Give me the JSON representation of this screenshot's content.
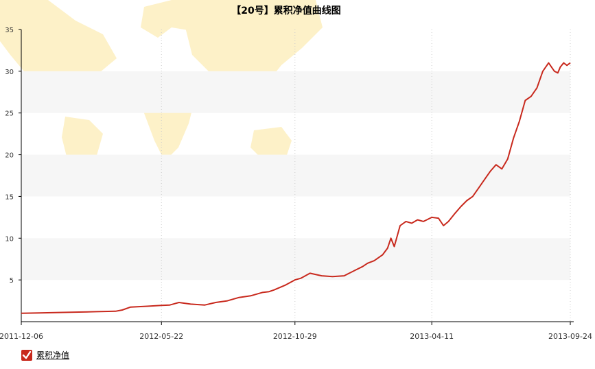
{
  "chart_data": {
    "type": "line",
    "title": "【20号】累积净值曲线图",
    "xlabel": "",
    "ylabel": "",
    "ylim": [
      0,
      35
    ],
    "yticks": [
      5,
      10,
      15,
      20,
      25,
      30,
      35
    ],
    "xticks": [
      "2011-12-06",
      "2012-05-22",
      "2012-10-29",
      "2013-04-11",
      "2013-09-24"
    ],
    "x_range": [
      "2011-12-06",
      "2013-09-24"
    ],
    "band_fill": "#f6f6f6",
    "line_color": "#c8291d",
    "legend": {
      "position": "bottom-left"
    },
    "series": [
      {
        "name": "累积净值",
        "x": [
          "2011-12-06",
          "2011-12-28",
          "2012-01-20",
          "2012-02-13",
          "2012-03-05",
          "2012-03-28",
          "2012-04-05",
          "2012-04-15",
          "2012-05-05",
          "2012-05-22",
          "2012-06-01",
          "2012-06-12",
          "2012-06-26",
          "2012-07-13",
          "2012-07-26",
          "2012-08-09",
          "2012-08-23",
          "2012-09-06",
          "2012-09-20",
          "2012-09-28",
          "2012-10-04",
          "2012-10-18",
          "2012-10-29",
          "2012-11-05",
          "2012-11-16",
          "2012-11-30",
          "2012-12-13",
          "2012-12-27",
          "2013-01-10",
          "2013-01-18",
          "2013-01-24",
          "2013-02-01",
          "2013-02-11",
          "2013-02-17",
          "2013-02-21",
          "2013-02-25",
          "2013-03-04",
          "2013-03-11",
          "2013-03-18",
          "2013-03-25",
          "2013-04-01",
          "2013-04-11",
          "2013-04-19",
          "2013-04-25",
          "2013-05-01",
          "2013-05-09",
          "2013-05-16",
          "2013-05-23",
          "2013-05-30",
          "2013-06-06",
          "2013-06-13",
          "2013-06-20",
          "2013-06-27",
          "2013-07-04",
          "2013-07-11",
          "2013-07-18",
          "2013-07-25",
          "2013-08-01",
          "2013-08-08",
          "2013-08-15",
          "2013-08-22",
          "2013-08-29",
          "2013-09-05",
          "2013-09-09",
          "2013-09-12",
          "2013-09-16",
          "2013-09-20",
          "2013-09-24"
        ],
        "values": [
          1.0,
          1.05,
          1.1,
          1.15,
          1.2,
          1.25,
          1.4,
          1.75,
          1.85,
          1.95,
          2.0,
          2.3,
          2.1,
          2.0,
          2.3,
          2.5,
          2.9,
          3.1,
          3.5,
          3.6,
          3.8,
          4.4,
          5.0,
          5.2,
          5.8,
          5.5,
          5.4,
          5.5,
          6.2,
          6.6,
          7.0,
          7.3,
          8.0,
          8.8,
          10.0,
          9.0,
          11.5,
          12.0,
          11.8,
          12.2,
          12.0,
          12.5,
          12.4,
          11.5,
          12.0,
          13.0,
          13.8,
          14.5,
          15.0,
          16.0,
          17.0,
          18.0,
          18.8,
          18.3,
          19.5,
          22.0,
          24.0,
          26.5,
          27.0,
          28.0,
          30.0,
          31.0,
          30.0,
          29.8,
          30.5,
          31.0,
          30.7,
          31.0
        ]
      }
    ]
  }
}
